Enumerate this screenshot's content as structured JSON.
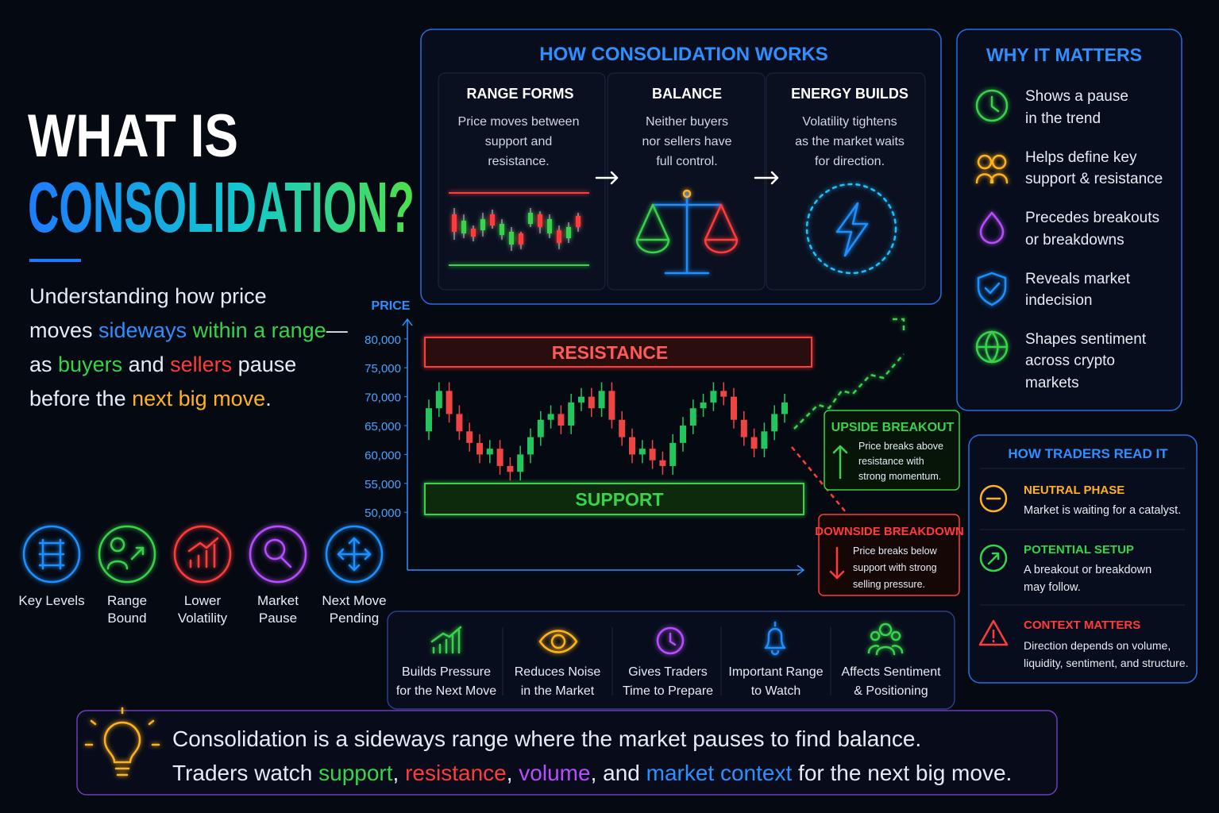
{
  "title": {
    "line1": "WHAT IS",
    "line2": "CONSOLIDATION?"
  },
  "intro": {
    "lines": [
      [
        "Understanding how price"
      ],
      [
        "moves ",
        "sideways",
        " within a range",
        "—"
      ],
      [
        "as ",
        "buyers",
        " and ",
        "sellers",
        " pause"
      ],
      [
        "before the ",
        "next big move",
        "."
      ]
    ]
  },
  "features": [
    [
      "Key Levels"
    ],
    [
      "Range",
      "Bound"
    ],
    [
      "Lower",
      "Volatility"
    ],
    [
      "Market",
      "Pause"
    ],
    [
      "Next Move",
      "Pending"
    ]
  ],
  "how_it_works": {
    "title": "HOW CONSOLIDATION WORKS",
    "steps": [
      {
        "title": "RANGE FORMS",
        "lines": [
          "Price moves between",
          "support and",
          "resistance."
        ]
      },
      {
        "title": "BALANCE",
        "lines": [
          "Neither buyers",
          "nor sellers have",
          "full control."
        ]
      },
      {
        "title": "ENERGY BUILDS",
        "lines": [
          "Volatility tightens",
          "as the market waits",
          "for direction."
        ]
      }
    ]
  },
  "why_it_matters": {
    "title": "WHY IT MATTERS",
    "items": [
      [
        "Shows a pause",
        "in the trend"
      ],
      [
        "Helps define key",
        "support & resistance"
      ],
      [
        "Precedes breakouts",
        "or breakdowns"
      ],
      [
        "Reveals market",
        "indecision"
      ],
      [
        "Shapes sentiment",
        "across crypto",
        "markets"
      ]
    ]
  },
  "chart_data": {
    "type": "candlestick",
    "ylabel": "PRICE",
    "annotations": [
      "RESISTANCE",
      "SUPPORT"
    ],
    "ylim": [
      40000,
      83000
    ],
    "yticks": [
      {
        "value": 50000,
        "label": "50,000"
      },
      {
        "value": 55000,
        "label": "55,000"
      },
      {
        "value": 60000,
        "label": "60,000"
      },
      {
        "value": 65000,
        "label": "65,000"
      },
      {
        "value": 70000,
        "label": "70,000"
      },
      {
        "value": 75000,
        "label": "75,000"
      },
      {
        "value": 80000,
        "label": "80,000"
      }
    ],
    "up_color": "#22c55e",
    "down_color": "#ef4444",
    "open": [
      64000,
      68000,
      71000,
      67000,
      64000,
      62000,
      60000,
      61000,
      58000,
      57000,
      60000,
      63000,
      66000,
      67000,
      65000,
      69000,
      70000,
      68000,
      71000,
      66000,
      63000,
      60000,
      61000,
      59000,
      58000,
      62000,
      65000,
      68000,
      69000,
      71000,
      70000,
      66000,
      63000,
      61000,
      64000,
      67000
    ],
    "high": [
      69500,
      72500,
      72500,
      68500,
      65500,
      63500,
      62500,
      62500,
      59500,
      61500,
      64500,
      67500,
      68500,
      68500,
      70500,
      71500,
      71500,
      72500,
      72500,
      67500,
      64500,
      62500,
      62500,
      60500,
      63500,
      66500,
      69500,
      70500,
      72500,
      72500,
      71500,
      67500,
      64500,
      65500,
      68500,
      70500
    ],
    "low": [
      62500,
      66500,
      65500,
      62500,
      60500,
      58500,
      58500,
      56500,
      55500,
      55500,
      58500,
      61500,
      64500,
      63500,
      63500,
      67500,
      66500,
      66500,
      64500,
      61500,
      58500,
      58500,
      57500,
      56500,
      56500,
      60500,
      63500,
      66500,
      67500,
      68500,
      64500,
      61500,
      59500,
      59500,
      62500,
      65500
    ],
    "close": [
      68000,
      71000,
      67000,
      64000,
      62000,
      60000,
      61000,
      58000,
      57000,
      60000,
      63000,
      66000,
      67000,
      65000,
      69000,
      70000,
      68000,
      71000,
      66000,
      63000,
      60000,
      61000,
      59000,
      58000,
      62000,
      65000,
      68000,
      69000,
      71000,
      70000,
      66000,
      63000,
      61000,
      64000,
      67000,
      69000
    ]
  },
  "breakouts": {
    "upside": {
      "title": "UPSIDE BREAKOUT",
      "lines": [
        "Price breaks above",
        "resistance with",
        "strong momentum."
      ]
    },
    "downside": {
      "title": "DOWNSIDE BREAKDOWN",
      "lines": [
        "Price breaks below",
        "support with strong",
        "selling pressure."
      ]
    }
  },
  "benefits": [
    [
      "Builds Pressure",
      "for the Next Move"
    ],
    [
      "Reduces Noise",
      "in the Market"
    ],
    [
      "Gives Traders",
      "Time to Prepare"
    ],
    [
      "Important Range",
      "to Watch"
    ],
    [
      "Affects Sentiment",
      "& Positioning"
    ]
  ],
  "traders": {
    "title": "HOW TRADERS READ IT",
    "items": [
      {
        "title": "NEUTRAL PHASE",
        "lines": [
          "Market is waiting for a catalyst."
        ]
      },
      {
        "title": "POTENTIAL SETUP",
        "lines": [
          "A breakout or breakdown",
          "may follow."
        ]
      },
      {
        "title": "CONTEXT MATTERS",
        "lines": [
          "Direction depends on volume,",
          "liquidity, sentiment, and structure."
        ]
      }
    ]
  },
  "summary": {
    "line1": "Consolidation is a sideways range where the market pauses to find balance.",
    "line2": [
      "Traders watch ",
      "support",
      ", ",
      "resistance",
      ", ",
      "volume",
      ", and ",
      "market context",
      " for the next big move."
    ]
  }
}
